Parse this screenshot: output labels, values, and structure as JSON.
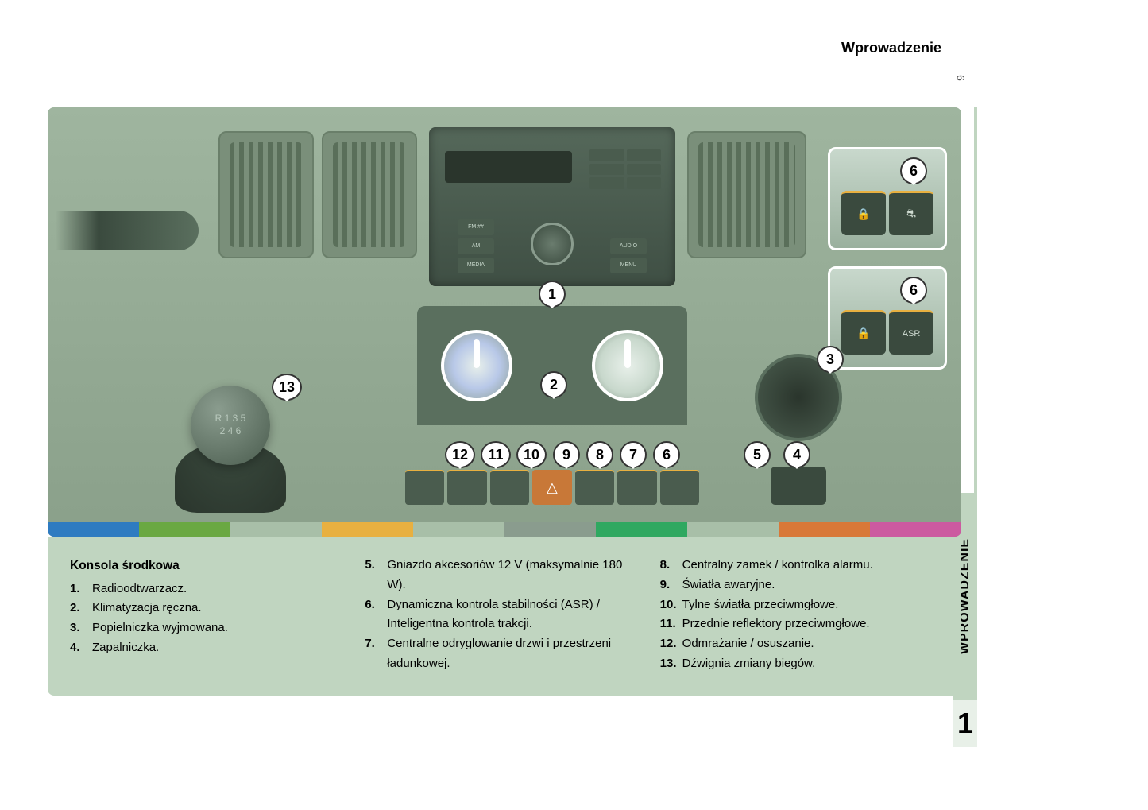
{
  "header": {
    "section": "Wprowadzenie",
    "page_number": "9",
    "side_tab": "WPROWADZENIE",
    "chapter": "1"
  },
  "figure": {
    "callouts": {
      "1": "1",
      "2": "2",
      "3": "3",
      "4": "4",
      "5": "5",
      "6": "6",
      "7": "7",
      "8": "8",
      "9": "9",
      "10": "10",
      "11": "11",
      "12": "12",
      "13": "13"
    },
    "inset_top_callout": "6",
    "inset_bot_callout": "6",
    "inset_bot_label": "ASR",
    "radio_labels": {
      "fm": "FM ##",
      "am": "AM",
      "media": "MEDIA",
      "audio": "AUDIO",
      "menu": "MENU"
    },
    "color_bar": [
      "#2e7bc1",
      "#6aa842",
      "#a8bfa8",
      "#e8b040",
      "#a8bfa8",
      "#8a9c8e",
      "#2fa860",
      "#a8bfa8",
      "#d87838",
      "#cc5aa0"
    ]
  },
  "legend": {
    "title": "Konsola środkowa",
    "items": {
      "1": "Radioodtwarzacz.",
      "2": "Klimatyzacja ręczna.",
      "3": "Popielniczka wyjmowana.",
      "4": "Zapalniczka.",
      "5": "Gniazdo akcesoriów 12 V (maksymalnie 180 W).",
      "6": "Dynamiczna kontrola stabilności (ASR) / Inteligentna kontrola trakcji.",
      "7": "Centralne odryglowanie drzwi i przestrzeni ładunkowej.",
      "8": "Centralny zamek / kontrolka alarmu.",
      "9": "Światła awaryjne.",
      "10": "Tylne światła przeciwmgłowe.",
      "11": "Przednie reflektory przeciwmgłowe.",
      "12": "Odmrażanie / osuszanie.",
      "13": "Dźwignia zmiany biegów."
    }
  }
}
